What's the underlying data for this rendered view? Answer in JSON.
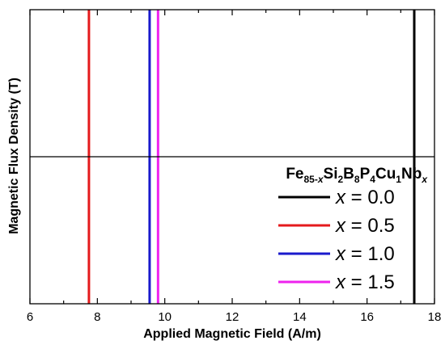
{
  "chart_data": {
    "type": "line",
    "xlabel": "Applied Magnetic Field (A/m)",
    "ylabel": "Magnetic Flux Density (T)",
    "xlim": [
      6,
      18
    ],
    "x_ticks": [
      "6",
      "8",
      "10",
      "12",
      "14",
      "16",
      "18"
    ],
    "y_ticks_labeled": false,
    "reference_line": "horizontal line at vertical midpoint",
    "grid": false,
    "legend_position": "bottom-right",
    "legend_title": {
      "parts": [
        {
          "text": "Fe",
          "style": "normal"
        },
        {
          "text": "85-",
          "style": "sub"
        },
        {
          "text": "x",
          "style": "sub-italic"
        },
        {
          "text": "Si",
          "style": "normal"
        },
        {
          "text": "2",
          "style": "sub"
        },
        {
          "text": "B",
          "style": "normal"
        },
        {
          "text": "8",
          "style": "sub"
        },
        {
          "text": "P",
          "style": "normal"
        },
        {
          "text": "4",
          "style": "sub"
        },
        {
          "text": "Cu",
          "style": "normal"
        },
        {
          "text": "1",
          "style": "sub"
        },
        {
          "text": "Nb",
          "style": "normal"
        },
        {
          "text": "x",
          "style": "sub-italic"
        }
      ]
    },
    "series": [
      {
        "name": "x = 0.0",
        "var": "x",
        "rest": " = 0.0",
        "color": "#000000",
        "x": 17.4
      },
      {
        "name": "x = 0.5",
        "var": "x",
        "rest": " = 0.5",
        "color": "#e41a1c",
        "x": 7.75
      },
      {
        "name": "x = 1.0",
        "var": "x",
        "rest": " = 1.0",
        "color": "#1a1acc",
        "x": 9.55
      },
      {
        "name": "x = 1.5",
        "var": "x",
        "rest": " = 1.5",
        "color": "#ee22ee",
        "x": 9.8
      }
    ]
  }
}
